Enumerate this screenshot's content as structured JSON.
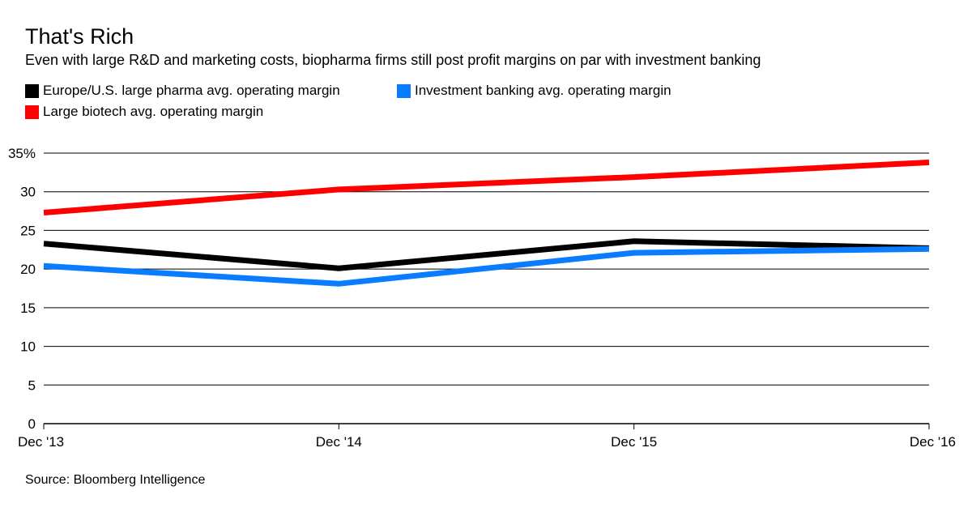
{
  "chart_data": {
    "type": "line",
    "title": "That's Rich",
    "subtitle": "Even with large R&D and marketing costs, biopharma firms still post profit margins on par with investment banking",
    "source": "Source: Bloomberg Intelligence",
    "x": [
      "Dec '13",
      "Dec '14",
      "Dec '15",
      "Dec '16"
    ],
    "y_ticks": [
      "0",
      "5",
      "10",
      "15",
      "20",
      "25",
      "30",
      "35%"
    ],
    "ylim": [
      0,
      35
    ],
    "grid": true,
    "legend_position": "top-left",
    "series": [
      {
        "name": "Europe/U.S. large pharma avg. operating margin",
        "color": "#000000",
        "values": [
          23.3,
          20.1,
          23.6,
          22.7
        ]
      },
      {
        "name": "Investment banking avg. operating margin",
        "color": "#0a7cff",
        "values": [
          20.4,
          18.1,
          22.1,
          22.6
        ]
      },
      {
        "name": "Large biotech avg. operating margin",
        "color": "#ff0000",
        "values": [
          27.3,
          30.3,
          31.9,
          33.8
        ]
      }
    ]
  }
}
